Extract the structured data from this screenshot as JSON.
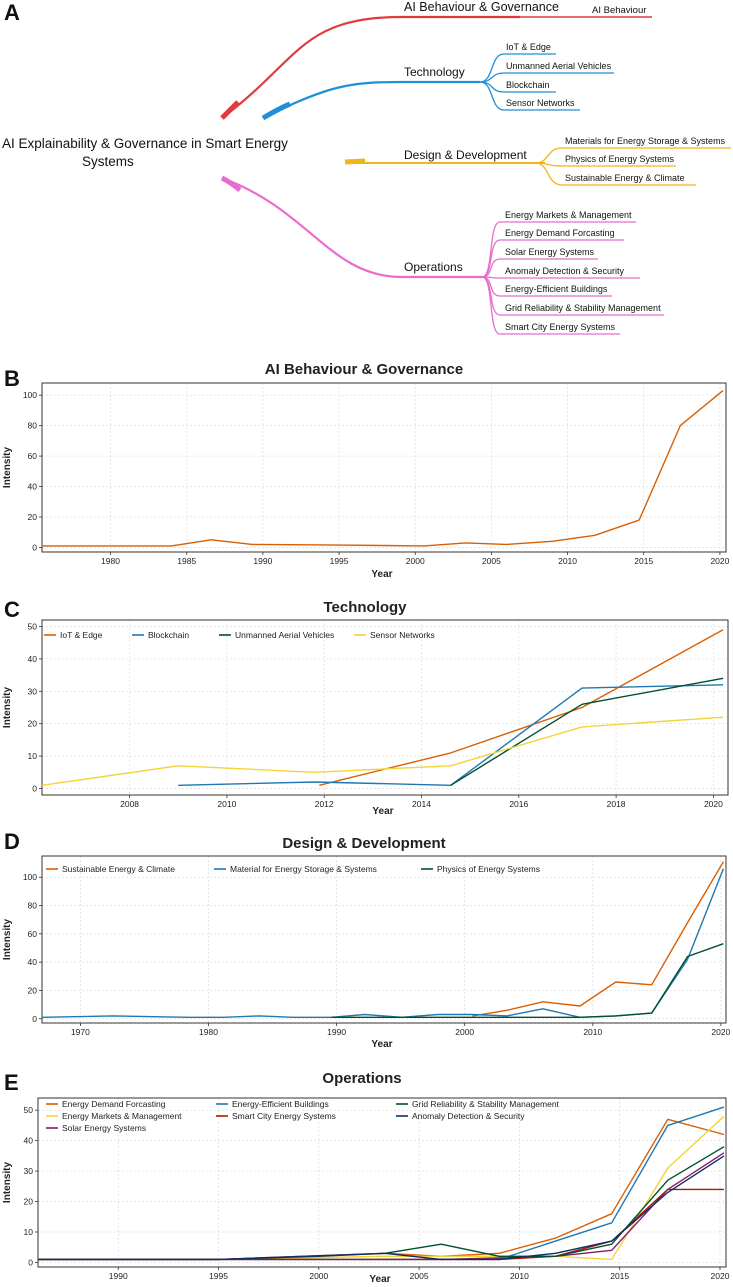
{
  "panels": {
    "a": "A",
    "b": "B",
    "c": "C",
    "d": "D",
    "e": "E"
  },
  "mindmap": {
    "root": [
      "AI Explainability & Governance in Smart Energy",
      "Systems"
    ],
    "branches": [
      {
        "label": "AI Behaviour & Governance",
        "color": "#e0393e",
        "children": [
          "AI Behaviour"
        ]
      },
      {
        "label": "Technology",
        "color": "#1f8fd6",
        "children": [
          "IoT & Edge",
          "Unmanned Aerial Vehicles",
          "Blockchain",
          "Sensor Networks"
        ]
      },
      {
        "label": "Design & Development",
        "color": "#f0b41c",
        "children": [
          "Materials for Energy Storage & Systems",
          "Physics of Energy Systems",
          "Sustainable Energy & Climate"
        ]
      },
      {
        "label": "Operations",
        "color": "#e86ccf",
        "children": [
          "Energy Markets & Management",
          "Energy Demand Forcasting",
          "Solar Energy Systems",
          "Anomaly Detection & Security",
          "Energy-Efficient Buildings",
          "Grid Reliability & Stability Management",
          "Smart City Energy Systems"
        ]
      }
    ]
  },
  "chart_data": [
    {
      "type": "line",
      "title": "AI Behaviour & Governance",
      "xlabel": "Year",
      "ylabel": "Intensity",
      "xlim": [
        1975.5,
        2020.4
      ],
      "ylim": [
        -3,
        108
      ],
      "xticks": [
        1980,
        1985,
        1990,
        1995,
        2000,
        2005,
        2010,
        2015,
        2020
      ],
      "yticks": [
        0,
        20,
        40,
        60,
        80,
        100
      ],
      "grid": true,
      "legend": "none",
      "series": [
        {
          "name": "AI Behaviour",
          "color": "#d95f02",
          "x": [
            1975.5,
            1984,
            1986.6,
            1989.3,
            1995,
            2000.6,
            2003.3,
            2006,
            2009,
            2011.8,
            2014.7,
            2017.4,
            2020.2
          ],
          "y": [
            1,
            1,
            5,
            2,
            1.5,
            1,
            3,
            2,
            4,
            8,
            18,
            80,
            103
          ]
        }
      ]
    },
    {
      "type": "line",
      "title": "Technology",
      "xlabel": "Year",
      "ylabel": "Intensity",
      "xlim": [
        2006.2,
        2020.3
      ],
      "ylim": [
        -2,
        52
      ],
      "xticks": [
        2008,
        2010,
        2012,
        2014,
        2016,
        2018,
        2020
      ],
      "yticks": [
        0,
        10,
        20,
        30,
        40,
        50
      ],
      "grid": true,
      "legend": "top-left",
      "series": [
        {
          "name": "IoT & Edge",
          "color": "#d95f02",
          "x": [
            2011.9,
            2014.6,
            2017.3,
            2020.2
          ],
          "y": [
            1,
            11,
            25,
            49
          ]
        },
        {
          "name": "Blockchain",
          "color": "#1f78b4",
          "x": [
            2009,
            2011.8,
            2014.6,
            2017.3,
            2020.2
          ],
          "y": [
            1,
            2,
            1,
            31,
            32
          ]
        },
        {
          "name": "Unmanned Aerial Vehicles",
          "color": "#00502f",
          "x": [
            2014.6,
            2017.3,
            2020.2
          ],
          "y": [
            1,
            26,
            34
          ]
        },
        {
          "name": "Sensor Networks",
          "color": "#f2d43a",
          "x": [
            2006.2,
            2009,
            2011.8,
            2014.6,
            2017.3,
            2020.2
          ],
          "y": [
            1,
            7,
            5,
            7,
            19,
            22
          ]
        }
      ]
    },
    {
      "type": "line",
      "title": "Design & Development",
      "xlabel": "Year",
      "ylabel": "Intensity",
      "xlim": [
        1967,
        2020.4
      ],
      "ylim": [
        -3,
        115
      ],
      "xticks": [
        1970,
        1980,
        1990,
        2000,
        2010,
        2020
      ],
      "yticks": [
        0,
        20,
        40,
        60,
        80,
        100
      ],
      "grid": true,
      "legend": "top-left",
      "series": [
        {
          "name": "Sustainable Energy & Climate",
          "color": "#d95f02",
          "x": [
            2000.6,
            2003.3,
            2006.1,
            2009,
            2011.8,
            2014.6,
            2017.4,
            2020.2
          ],
          "y": [
            2,
            6,
            12,
            9,
            26,
            24,
            68,
            111
          ]
        },
        {
          "name": "Material for Energy Storage & Systems",
          "color": "#1f78b4",
          "x": [
            1967,
            1972.5,
            1978.4,
            1981.2,
            1984,
            1986.6,
            1989.6,
            1992.2,
            1995.1,
            1997.9,
            2000.6,
            2003.3,
            2006.1,
            2009,
            2011.8,
            2014.6,
            2017.4,
            2020.2
          ],
          "y": [
            1,
            2,
            1,
            1,
            2,
            1,
            1,
            3,
            1,
            3,
            3,
            2,
            7,
            1,
            2,
            4,
            42,
            106
          ]
        },
        {
          "name": "Physics of Energy Systems",
          "color": "#00502f",
          "x": [
            1989.6,
            1992.2,
            1995.1,
            1997.9,
            2000.6,
            2003.3,
            2006.1,
            2009,
            2011.8,
            2014.6,
            2017.4,
            2020.2
          ],
          "y": [
            1,
            1,
            1,
            1,
            1,
            1,
            1,
            1,
            2,
            4,
            44,
            53
          ]
        }
      ]
    },
    {
      "type": "line",
      "title": "Operations",
      "xlabel": "Year",
      "ylabel": "Intensity",
      "xlim": [
        1986,
        2020.3
      ],
      "ylim": [
        -1.5,
        54
      ],
      "xticks": [
        1990,
        1995,
        2000,
        2005,
        2010,
        2015,
        2020
      ],
      "yticks": [
        0,
        10,
        20,
        30,
        40,
        50
      ],
      "grid": true,
      "legend": "top",
      "series": [
        {
          "name": "Energy Demand Forcasting",
          "color": "#d95f02",
          "x": [
            1986,
            1995,
            2003.3,
            2006.1,
            2009,
            2011.8,
            2014.6,
            2017.4,
            2020.2
          ],
          "y": [
            1,
            1,
            3,
            2,
            3,
            8,
            16,
            47,
            42
          ]
        },
        {
          "name": "Energy Markets & Management",
          "color": "#f2d43a",
          "x": [
            1986,
            1995,
            2003.3,
            2006.1,
            2009,
            2011.8,
            2014.6,
            2017.4,
            2020.2
          ],
          "y": [
            1,
            1,
            2,
            2,
            2,
            2,
            1,
            31,
            48
          ]
        },
        {
          "name": "Solar Energy Systems",
          "color": "#8b1a6b",
          "x": [
            1986,
            1995,
            2006.1,
            2011.8,
            2014.6,
            2017.4,
            2020.2
          ],
          "y": [
            1,
            1,
            1,
            2,
            4,
            24,
            36
          ]
        },
        {
          "name": "Energy-Efficient Buildings",
          "color": "#1f78b4",
          "x": [
            1986,
            1995,
            2006.1,
            2009,
            2011.8,
            2014.6,
            2017.4,
            2020.2
          ],
          "y": [
            1,
            1,
            1,
            1,
            7,
            13,
            45,
            51
          ]
        },
        {
          "name": "Smart City Energy Systems",
          "color": "#a61c00",
          "x": [
            1986,
            1995,
            2003.3,
            2006.1,
            2009,
            2011.8,
            2014.6,
            2017.4,
            2020.2
          ],
          "y": [
            1,
            1,
            1,
            1,
            1,
            2,
            7,
            24,
            24
          ]
        },
        {
          "name": "Grid Reliability & Stability Management",
          "color": "#00502f",
          "x": [
            1986,
            1995,
            2000,
            2003.3,
            2006.1,
            2009,
            2011.8,
            2014.6,
            2017.4,
            2020.2
          ],
          "y": [
            1,
            1,
            2,
            3,
            6,
            2,
            2,
            6,
            27,
            38
          ]
        },
        {
          "name": "Anomaly Detection & Security",
          "color": "#132a6b",
          "x": [
            1986,
            1995,
            2003.3,
            2006.1,
            2009,
            2011.8,
            2014.6,
            2017.4,
            2020.2
          ],
          "y": [
            1,
            1,
            3,
            1,
            1,
            3,
            7,
            23,
            35
          ]
        }
      ]
    }
  ]
}
